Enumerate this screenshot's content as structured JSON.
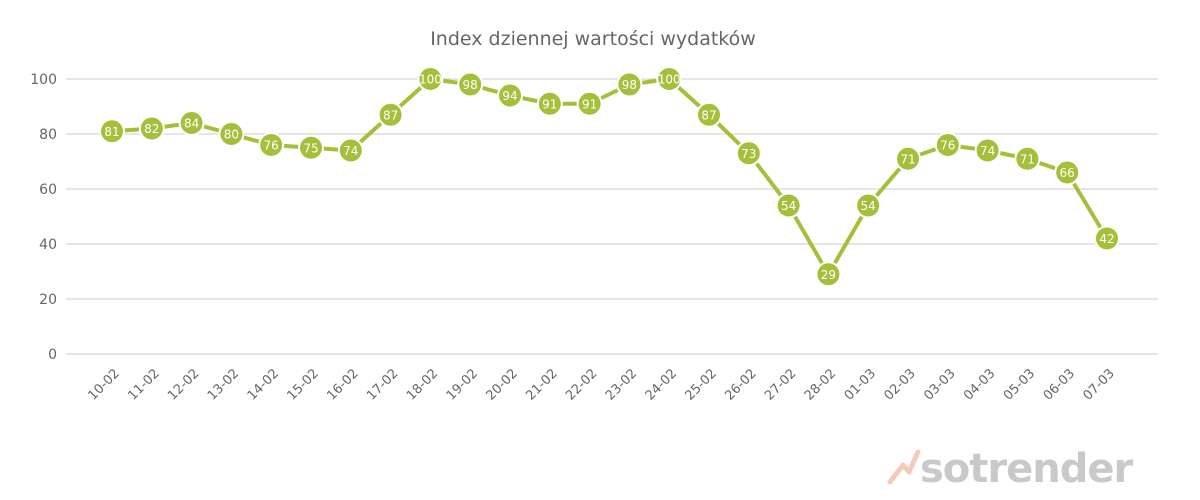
{
  "chart_data": {
    "type": "line",
    "title": "Index dziennej wartości wydatków",
    "categories": [
      "10-02",
      "11-02",
      "12-02",
      "13-02",
      "14-02",
      "15-02",
      "16-02",
      "17-02",
      "18-02",
      "19-02",
      "20-02",
      "21-02",
      "22-02",
      "23-02",
      "24-02",
      "25-02",
      "26-02",
      "27-02",
      "28-02",
      "01-03",
      "02-03",
      "03-03",
      "04-03",
      "05-03",
      "06-03",
      "07-03"
    ],
    "values": [
      81,
      82,
      84,
      80,
      76,
      75,
      74,
      87,
      100,
      98,
      94,
      91,
      91,
      98,
      100,
      87,
      73,
      54,
      29,
      54,
      71,
      76,
      74,
      71,
      66,
      42
    ],
    "xlabel": "",
    "ylabel": "",
    "ylim": [
      0,
      100
    ],
    "yticks": [
      "0",
      "20",
      "40",
      "60",
      "80",
      "100"
    ],
    "grid": true,
    "data_labels": true,
    "line_color": "#a4c03b",
    "marker_color": "#a4c03b",
    "label_color": "#ffffff",
    "grid_color": "#cccccc"
  },
  "logo": {
    "text": "sotrender"
  }
}
